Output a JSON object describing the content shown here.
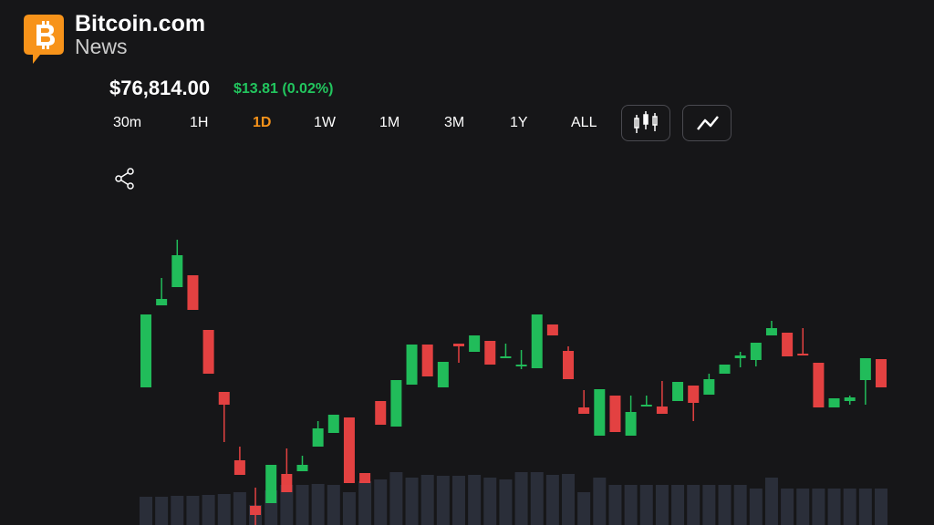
{
  "header": {
    "brand": "Bitcoin.com",
    "sub_brand": "News"
  },
  "price": {
    "value": "$76,814.00",
    "change": "$13.81 (0.02%)"
  },
  "ranges": {
    "items": [
      "30m",
      "1H",
      "1D",
      "1W",
      "1M",
      "3M",
      "1Y",
      "ALL"
    ],
    "active": 2
  },
  "chart_data": {
    "type": "candlestick",
    "open": [
      175,
      265,
      285,
      298,
      238,
      170,
      95,
      45,
      48,
      80,
      83,
      110,
      125,
      142,
      81,
      160,
      132,
      178,
      222,
      175,
      223,
      214,
      226,
      209,
      200,
      196,
      244,
      215,
      153,
      122,
      166,
      122,
      156,
      154,
      160,
      177,
      167,
      190,
      207,
      205,
      232,
      235,
      212,
      202,
      153,
      160,
      183,
      206
    ],
    "high": [
      255,
      295,
      337,
      298,
      238,
      170,
      110,
      65,
      90,
      108,
      100,
      138,
      145,
      142,
      81,
      160,
      183,
      222,
      222,
      203,
      223,
      232,
      226,
      223,
      216,
      255,
      244,
      220,
      172,
      173,
      166,
      166,
      166,
      182,
      181,
      177,
      190,
      200,
      214,
      224,
      248,
      235,
      240,
      202,
      163,
      166,
      207,
      206
    ],
    "low": [
      175,
      265,
      285,
      260,
      190,
      115,
      79,
      24,
      48,
      60,
      83,
      110,
      125,
      70,
      70,
      134,
      132,
      178,
      187,
      175,
      202,
      214,
      200,
      207,
      195,
      196,
      232,
      184,
      146,
      122,
      126,
      122,
      156,
      146,
      160,
      138,
      167,
      190,
      197,
      198,
      232,
      209,
      210,
      153,
      153,
      156,
      156,
      175
    ],
    "close": [
      255,
      272,
      320,
      260,
      190,
      156,
      79,
      35,
      90,
      60,
      90,
      130,
      145,
      70,
      70,
      134,
      183,
      222,
      187,
      203,
      220,
      232,
      200,
      209,
      200,
      255,
      232,
      184,
      146,
      173,
      126,
      148,
      156,
      146,
      181,
      158,
      184,
      200,
      210,
      224,
      240,
      209,
      210,
      153,
      163,
      164,
      207,
      175
    ],
    "volume": [
      31,
      31,
      32,
      32,
      33,
      34,
      36,
      22,
      38,
      44,
      44,
      45,
      44,
      36,
      48,
      50,
      58,
      52,
      55,
      54,
      54,
      55,
      52,
      50,
      58,
      58,
      55,
      56,
      36,
      52,
      44,
      44,
      44,
      44,
      44,
      44,
      44,
      44,
      44,
      40,
      52,
      40,
      40,
      40,
      40,
      40,
      40,
      40
    ],
    "ylim": [
      0,
      600
    ],
    "volume_ylim": [
      0,
      200
    ],
    "up_color": "#22c55e",
    "down_color": "#ef4444",
    "volume_color": "#2a2e39"
  }
}
